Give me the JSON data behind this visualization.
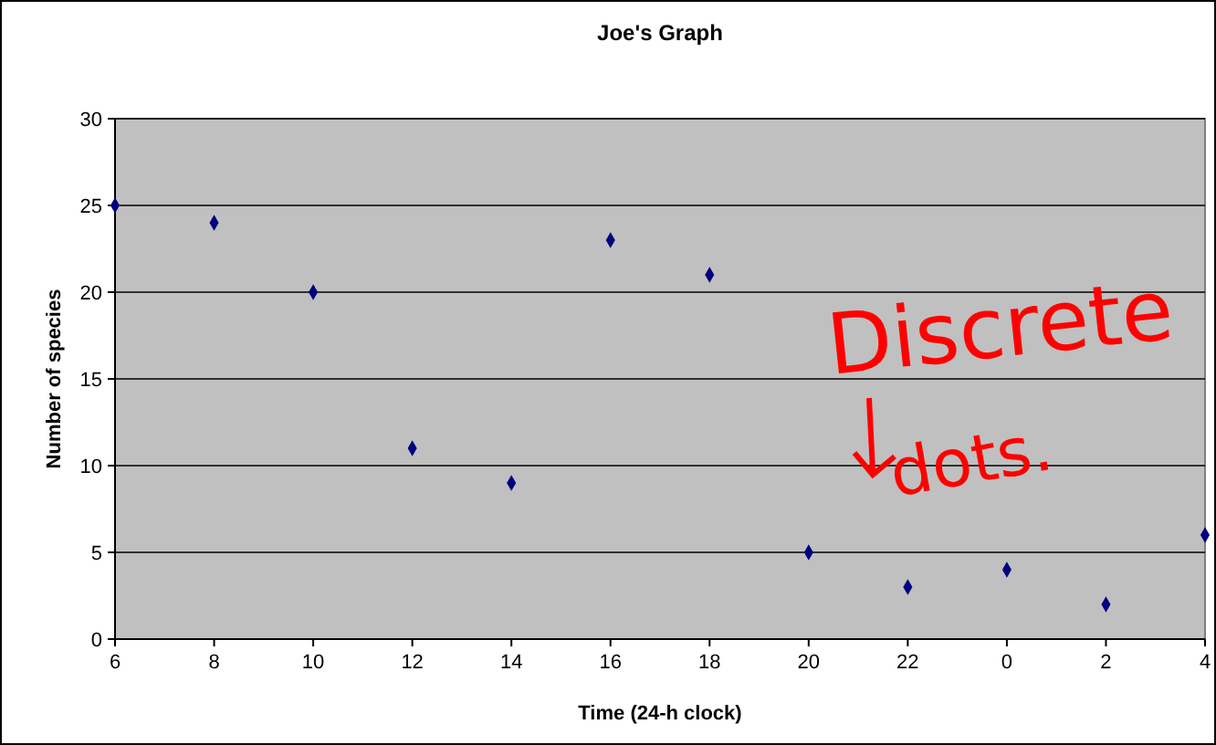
{
  "chart_data": {
    "type": "scatter",
    "title": "Joe's Graph",
    "xlabel": "Time (24-h clock)",
    "ylabel": "Number of species",
    "categories": [
      "6",
      "8",
      "10",
      "12",
      "14",
      "16",
      "18",
      "20",
      "22",
      "0",
      "2",
      "4"
    ],
    "values": [
      25,
      24,
      20,
      11,
      9,
      23,
      21,
      5,
      3,
      4,
      2,
      6
    ],
    "color": "#000080",
    "marker": "diamond",
    "ylim": [
      0,
      30
    ],
    "yticks": [
      0,
      5,
      10,
      15,
      20,
      25,
      30
    ],
    "grid": "y",
    "annotations": [
      "Discrete dots."
    ]
  }
}
